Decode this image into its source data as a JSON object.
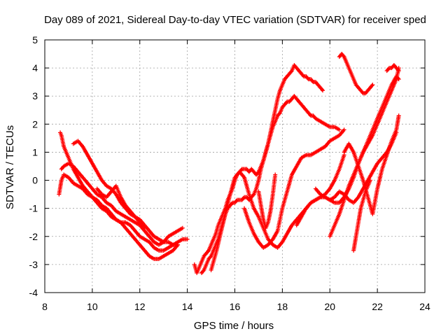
{
  "chart_data": {
    "type": "scatter",
    "title": "Day 089 of 2021, Sidereal Day-to-day VTEC variation (SDTVAR) for receiver sped",
    "xlabel": "GPS time / hours",
    "ylabel": "SDTVAR / TECUs",
    "xlim": [
      8,
      24
    ],
    "ylim": [
      -4,
      5
    ],
    "xticks": [
      8,
      10,
      12,
      14,
      16,
      18,
      20,
      22,
      24
    ],
    "yticks": [
      -4,
      -3,
      -2,
      -1,
      0,
      1,
      2,
      3,
      4,
      5
    ],
    "grid": true,
    "marker": "+",
    "colors": {
      "series": "#ff0000",
      "grid": "#a0a0a0",
      "axes": "#000000"
    },
    "series": [
      {
        "x": [
          8.65,
          8.7,
          8.8,
          9.0,
          9.2,
          9.4,
          9.6,
          9.8,
          10.0,
          10.2,
          10.4,
          10.6,
          10.8,
          11.0,
          11.2,
          11.4,
          11.6,
          11.8,
          12.0,
          12.2,
          12.4,
          12.6,
          12.8,
          13.0,
          13.2,
          13.4,
          13.6
        ],
        "y": [
          1.7,
          1.6,
          1.2,
          0.8,
          0.4,
          0.1,
          -0.2,
          -0.4,
          -0.6,
          -0.7,
          -0.9,
          -1.0,
          -1.2,
          -1.4,
          -1.5,
          -1.7,
          -1.9,
          -2.1,
          -2.3,
          -2.5,
          -2.7,
          -2.8,
          -2.8,
          -2.7,
          -2.6,
          -2.5,
          -2.3
        ]
      },
      {
        "x": [
          8.7,
          8.8,
          9.0,
          9.2,
          9.4,
          9.6,
          9.8,
          10.0,
          10.2,
          10.4,
          10.6,
          10.8,
          11.0,
          11.2,
          11.4,
          11.6,
          11.8,
          12.0,
          12.2,
          12.4,
          12.6,
          12.8,
          13.0,
          13.2,
          13.4,
          13.6,
          13.8
        ],
        "y": [
          0.4,
          0.5,
          0.6,
          0.5,
          0.3,
          0.1,
          -0.1,
          -0.3,
          -0.5,
          -0.6,
          -0.8,
          -0.9,
          -1.1,
          -1.2,
          -1.3,
          -1.4,
          -1.5,
          -1.6,
          -1.8,
          -2.0,
          -2.2,
          -2.3,
          -2.2,
          -2.0,
          -1.9,
          -1.8,
          -1.7
        ]
      },
      {
        "x": [
          9.2,
          9.4,
          9.6,
          9.8,
          10.0,
          10.2,
          10.4,
          10.6,
          10.8,
          11.0,
          11.2,
          11.4,
          11.6,
          11.8,
          12.0,
          12.2,
          12.4,
          12.6,
          12.8,
          13.0,
          13.2,
          13.4,
          13.6,
          13.8,
          14.0
        ],
        "y": [
          1.3,
          1.4,
          1.2,
          0.9,
          0.6,
          0.3,
          0.0,
          -0.2,
          -0.3,
          -0.5,
          -0.8,
          -1.0,
          -1.2,
          -1.3,
          -1.4,
          -1.6,
          -1.8,
          -2.0,
          -2.1,
          -2.2,
          -2.2,
          -2.3,
          -2.2,
          -2.1,
          -2.1
        ]
      },
      {
        "x": [
          8.6,
          8.7,
          8.8,
          9.0,
          9.2,
          9.4,
          9.6,
          9.8,
          10.0,
          10.2,
          10.4,
          10.6,
          10.8,
          11.0,
          11.2,
          11.4,
          11.6,
          11.8,
          12.0,
          12.2,
          12.4,
          12.6,
          12.8,
          13.0,
          13.2,
          13.4,
          13.6
        ],
        "y": [
          -0.5,
          0.0,
          0.2,
          0.1,
          -0.1,
          -0.2,
          -0.3,
          -0.5,
          -0.6,
          -0.8,
          -1.0,
          -1.1,
          -1.3,
          -1.4,
          -1.5,
          -1.5,
          -1.6,
          -1.8,
          -2.0,
          -2.1,
          -2.2,
          -2.4,
          -2.5,
          -2.5,
          -2.4,
          -2.3,
          -2.3
        ]
      },
      {
        "x": [
          10.2,
          10.4,
          10.6,
          10.8,
          11.0,
          11.2,
          11.4,
          11.6,
          11.8,
          12.0,
          12.2
        ],
        "y": [
          -0.3,
          -0.5,
          -0.6,
          -0.4,
          -0.2,
          -0.6,
          -0.9,
          -1.1,
          -1.3,
          -1.5,
          -1.7
        ]
      },
      {
        "x": [
          14.3,
          14.4,
          14.5,
          14.6,
          14.7,
          14.8,
          14.9,
          15.0,
          15.1,
          15.2,
          15.3,
          15.4,
          15.5,
          15.6,
          15.7,
          15.8,
          15.9,
          16.0,
          16.1,
          16.2,
          16.3,
          16.4,
          16.5,
          16.6,
          16.7,
          16.8,
          16.9,
          17.0,
          17.1,
          17.2,
          17.3,
          17.4,
          17.5,
          17.6,
          17.7,
          17.8,
          17.9,
          18.0,
          18.1,
          18.2,
          18.3,
          18.4,
          18.5,
          18.6,
          18.7,
          18.8,
          18.9,
          19.0,
          19.1,
          19.2,
          19.3,
          19.4,
          19.5,
          19.6,
          19.7
        ],
        "y": [
          -3.0,
          -3.3,
          -3.1,
          -2.9,
          -2.7,
          -2.6,
          -2.5,
          -2.3,
          -2.1,
          -1.9,
          -1.6,
          -1.4,
          -1.2,
          -1.0,
          -0.7,
          -0.5,
          -0.3,
          0.0,
          0.2,
          0.3,
          0.4,
          0.4,
          0.4,
          0.3,
          0.4,
          0.3,
          0.2,
          0.3,
          0.5,
          0.7,
          1.0,
          1.3,
          1.7,
          2.1,
          2.5,
          2.9,
          3.2,
          3.4,
          3.6,
          3.7,
          3.8,
          3.9,
          4.1,
          4.0,
          3.9,
          3.8,
          3.7,
          3.7,
          3.6,
          3.6,
          3.5,
          3.5,
          3.4,
          3.3,
          3.2
        ]
      },
      {
        "x": [
          14.6,
          14.7,
          14.8,
          14.9,
          15.0,
          15.1,
          15.2,
          15.3,
          15.4,
          15.5,
          15.6,
          15.7,
          15.8,
          15.9,
          16.0,
          16.1,
          16.2,
          16.3,
          16.4,
          16.5,
          16.6,
          16.7,
          16.8,
          16.9,
          17.0,
          17.1,
          17.2,
          17.3,
          17.4,
          17.5,
          17.6,
          17.7,
          17.8,
          17.9,
          18.0,
          18.1,
          18.2,
          18.3,
          18.4,
          18.5,
          18.6,
          18.7,
          18.8,
          18.9,
          19.0,
          19.1,
          19.2,
          19.3,
          19.4,
          19.6,
          19.8,
          20.0,
          20.2,
          20.4
        ],
        "y": [
          -3.3,
          -3.2,
          -3.0,
          -2.8,
          -2.7,
          -2.5,
          -2.3,
          -2.1,
          -1.8,
          -1.5,
          -1.2,
          -1.0,
          -0.9,
          -0.8,
          -0.8,
          -0.7,
          -0.7,
          -0.7,
          -0.6,
          -0.6,
          -0.7,
          -0.6,
          -0.5,
          -0.3,
          0.0,
          0.4,
          0.7,
          1.0,
          1.3,
          1.6,
          1.9,
          2.1,
          2.3,
          2.4,
          2.6,
          2.7,
          2.8,
          2.8,
          2.9,
          3.0,
          2.9,
          2.8,
          2.7,
          2.6,
          2.5,
          2.4,
          2.3,
          2.3,
          2.2,
          2.1,
          2.0,
          1.9,
          1.9,
          1.8
        ]
      },
      {
        "x": [
          15.0,
          15.2,
          15.4,
          15.6,
          15.8,
          16.0,
          16.2,
          16.4,
          16.6,
          16.8,
          17.0,
          17.2,
          17.4,
          17.6,
          17.8,
          18.0,
          18.2,
          18.4,
          18.6,
          18.8,
          19.0,
          19.2,
          19.4,
          19.6,
          19.8,
          20.0,
          20.2,
          20.4,
          20.6
        ],
        "y": [
          -3.2,
          -2.6,
          -1.9,
          -1.2,
          -0.5,
          0.1,
          0.3,
          0.1,
          -0.5,
          -1.0,
          -1.3,
          -1.7,
          -2.1,
          -2.3,
          -2.4,
          -2.2,
          -1.9,
          -1.6,
          -1.4,
          -1.2,
          -1.0,
          -0.8,
          -0.7,
          -0.6,
          -0.5,
          -0.3,
          0.0,
          0.4,
          0.9
        ]
      },
      {
        "x": [
          16.4,
          16.6,
          16.8,
          17.0,
          17.2,
          17.4,
          17.6,
          17.8,
          18.0,
          18.2,
          18.4,
          18.6,
          18.8,
          19.0,
          19.2,
          19.4,
          19.6,
          19.8,
          20.0,
          20.2,
          20.4,
          20.6
        ],
        "y": [
          -1.0,
          -1.5,
          -1.9,
          -2.2,
          -2.4,
          -2.3,
          -2.1,
          -1.8,
          -1.0,
          -0.4,
          0.2,
          0.5,
          0.8,
          0.9,
          0.9,
          1.0,
          1.1,
          1.2,
          1.4,
          1.5,
          1.6,
          1.8
        ]
      },
      {
        "x": [
          17.0,
          17.1,
          17.2,
          17.3,
          17.4,
          17.5,
          17.6,
          17.7
        ],
        "y": [
          -0.4,
          -0.9,
          -1.4,
          -1.7,
          -1.5,
          -1.1,
          -0.5,
          0.2
        ]
      },
      {
        "x": [
          18.6,
          18.8,
          19.0,
          19.2,
          19.4,
          19.6,
          19.8,
          20.0,
          20.2,
          20.4,
          20.6,
          20.8,
          21.0,
          21.2,
          21.4,
          21.6,
          21.8,
          22.0,
          22.2,
          22.4,
          22.6,
          22.8,
          22.9
        ],
        "y": [
          -1.6,
          -1.3,
          -1.0,
          -0.8,
          -0.7,
          -0.6,
          -0.6,
          -0.7,
          -0.8,
          -0.8,
          -0.6,
          -0.3,
          0.1,
          0.6,
          1.0,
          1.3,
          1.6,
          2.0,
          2.4,
          2.8,
          3.2,
          3.6,
          4.0
        ]
      },
      {
        "x": [
          19.4,
          19.6,
          19.8,
          20.0,
          20.2,
          20.4,
          20.6,
          20.8,
          21.0,
          21.2,
          21.4,
          21.6,
          21.8,
          22.0,
          22.2,
          22.4,
          22.6,
          22.8
        ],
        "y": [
          -0.3,
          -0.5,
          -0.6,
          -0.7,
          -0.6,
          -0.4,
          -0.5,
          -0.7,
          -0.8,
          -0.6,
          -0.3,
          0.0,
          0.3,
          0.6,
          0.8,
          1.0,
          1.3,
          1.7
        ]
      },
      {
        "x": [
          20.0,
          20.2,
          20.4,
          20.6,
          20.8,
          21.0,
          21.2,
          21.4,
          21.6,
          21.8,
          22.0,
          22.2,
          22.4,
          22.6,
          22.8,
          22.9
        ],
        "y": [
          -2.0,
          -1.6,
          -1.2,
          -0.7,
          -0.2,
          0.2,
          0.6,
          1.0,
          1.4,
          1.8,
          2.2,
          2.6,
          3.0,
          3.4,
          3.7,
          3.6
        ]
      },
      {
        "x": [
          20.6,
          20.8,
          21.0,
          21.2,
          21.4,
          21.6,
          21.8,
          22.0,
          22.2,
          22.4,
          22.6,
          22.8,
          22.9
        ],
        "y": [
          1.0,
          1.3,
          1.0,
          0.5,
          0.0,
          -0.6,
          -1.2,
          -0.3,
          0.4,
          0.9,
          1.4,
          1.8,
          2.3
        ]
      },
      {
        "x": [
          20.4,
          20.5,
          20.6,
          20.7,
          20.8,
          20.9,
          21.0,
          21.1,
          21.2,
          21.3,
          21.4,
          21.5,
          21.6,
          21.7,
          21.8
        ],
        "y": [
          4.4,
          4.5,
          4.4,
          4.2,
          4.0,
          3.8,
          3.6,
          3.4,
          3.3,
          3.2,
          3.1,
          3.1,
          3.2,
          3.3,
          3.4
        ]
      },
      {
        "x": [
          21.0,
          21.1,
          21.2,
          21.3,
          21.4,
          21.5,
          21.6,
          21.7
        ],
        "y": [
          -2.5,
          -2.0,
          -1.5,
          -1.0,
          -0.7,
          -0.4,
          -0.2,
          0.0
        ]
      },
      {
        "x": [
          22.4,
          22.5,
          22.6,
          22.7,
          22.8,
          22.9
        ],
        "y": [
          3.9,
          4.0,
          4.0,
          4.1,
          4.0,
          3.9
        ]
      }
    ]
  }
}
